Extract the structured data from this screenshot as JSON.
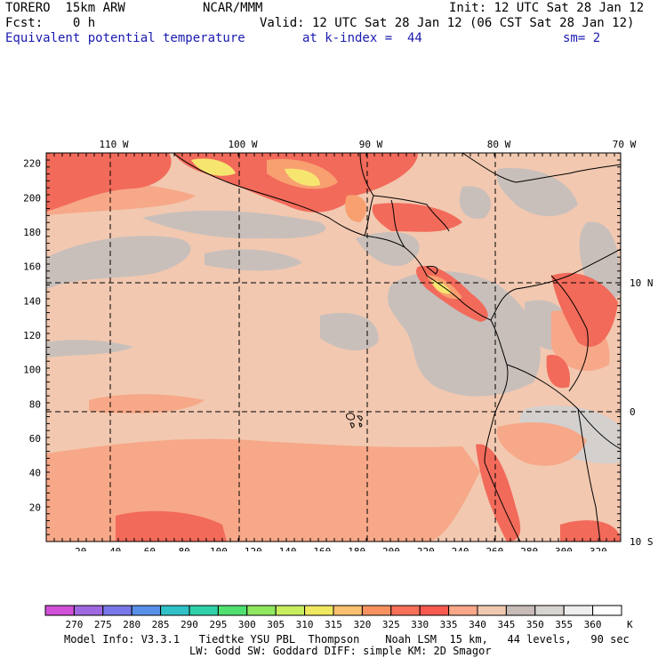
{
  "header": {
    "line1_left": "TORERO  15km ARW",
    "line1_center": "NCAR/MMM",
    "line1_right": "Init: 12 UTC Sat 28 Jan 12",
    "line2_left": "Fcst:    0 h",
    "line2_right": "Valid: 12 UTC Sat 28 Jan 12 (06 CST Sat 28 Jan 12)",
    "line3_left": "Equivalent potential temperature",
    "line3_center": "at k-index =  44",
    "line3_right": "sm= 2"
  },
  "map": {
    "top_longitude_labels": [
      "110 W",
      "100 W",
      "90 W",
      "80 W",
      "70 W"
    ],
    "left_y_ticks": [
      "220",
      "200",
      "180",
      "160",
      "140",
      "120",
      "100",
      "80",
      "60",
      "40",
      "20"
    ],
    "bottom_x_ticks": [
      "20",
      "40",
      "60",
      "80",
      "100",
      "120",
      "140",
      "160",
      "180",
      "200",
      "220",
      "240",
      "260",
      "280",
      "300",
      "320"
    ],
    "right_latitude_labels": [
      "10 N",
      "0",
      "10 S"
    ],
    "colors": {
      "base": "#f2c8b0",
      "gray": "#c8bfbb",
      "lightgray": "#d4d0ce",
      "salmon": "#f7a888",
      "red": "#f26a5a",
      "orange": "#f8a070",
      "yellow": "#f6e670"
    }
  },
  "colorbar": {
    "values": [
      "270",
      "275",
      "280",
      "285",
      "290",
      "295",
      "300",
      "305",
      "310",
      "315",
      "320",
      "325",
      "330",
      "335",
      "340",
      "345",
      "350",
      "355",
      "360"
    ],
    "unit": "K",
    "colors": [
      "#d050d8",
      "#a068e0",
      "#7878e8",
      "#5890e8",
      "#30c0c8",
      "#30d0a8",
      "#50e070",
      "#90e860",
      "#c8ee60",
      "#f0e860",
      "#f8c070",
      "#f89060",
      "#f87058",
      "#f85a50",
      "#f8a888",
      "#f0c8b0",
      "#c8bcb8",
      "#d8d4d2",
      "#eeeeee",
      "#ffffff"
    ]
  },
  "footer": {
    "line1": "Model Info: V3.3.1   Tiedtke YSU PBL  Thompson    Noah LSM  15 km,   44 levels,   90 sec",
    "line2": "LW: Godd SW: Goddard DIFF: simple KM: 2D Smagor"
  }
}
